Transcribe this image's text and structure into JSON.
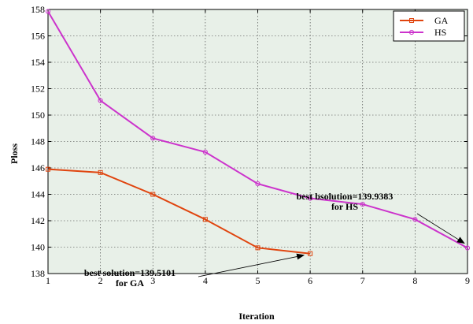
{
  "chart_data": {
    "type": "line",
    "title": "",
    "xlabel": "Iteration",
    "ylabel": "Ploss",
    "xlim": [
      1,
      9
    ],
    "ylim": [
      138,
      158
    ],
    "x_ticks": [
      1,
      2,
      3,
      4,
      5,
      6,
      7,
      8,
      9
    ],
    "y_ticks": [
      138,
      140,
      142,
      144,
      146,
      148,
      150,
      152,
      154,
      156,
      158
    ],
    "grid": true,
    "legend_position": "top-right",
    "background_color": "#e8f0e8",
    "series": [
      {
        "name": "GA",
        "color": "#e0440e",
        "marker": "square",
        "x": [
          1,
          2,
          3,
          4,
          5,
          6
        ],
        "y": [
          145.9,
          145.65,
          144.0,
          142.1,
          139.95,
          139.5101
        ]
      },
      {
        "name": "HS",
        "color": "#cc33cc",
        "marker": "circle",
        "x": [
          1,
          2,
          3,
          4,
          5,
          6,
          7,
          8,
          9
        ],
        "y": [
          157.85,
          151.1,
          148.25,
          147.2,
          144.8,
          143.7,
          143.25,
          142.1,
          139.9383
        ]
      }
    ],
    "annotations": [
      {
        "lines": [
          "best bsolution=139.9383",
          "for HS"
        ],
        "target_series": "HS",
        "target_x": 9,
        "target_y": 139.9383
      },
      {
        "lines": [
          "best solution=139.5101",
          "for GA"
        ],
        "target_series": "GA",
        "target_x": 6,
        "target_y": 139.5101
      }
    ]
  }
}
